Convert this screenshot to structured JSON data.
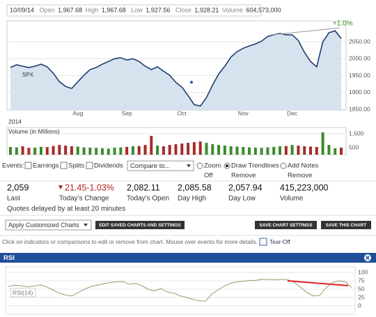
{
  "header": {
    "date": "10/09/14",
    "fields": [
      {
        "label": "Open",
        "value": "1,967.68"
      },
      {
        "label": "High",
        "value": "1,967.68"
      },
      {
        "label": "Low",
        "value": "1,927.56"
      },
      {
        "label": "Close",
        "value": "1,928.21"
      },
      {
        "label": "Volume",
        "value": "604,573,000"
      }
    ]
  },
  "chart_data": [
    {
      "type": "line",
      "name": "SPX",
      "year": "2014",
      "annotation": "+1.0%",
      "categories": [
        null,
        null,
        null,
        null,
        null,
        null,
        null,
        null,
        null,
        null,
        null,
        "Aug",
        null,
        null,
        null,
        null,
        null,
        null,
        null,
        "Sep",
        null,
        null,
        null,
        null,
        null,
        null,
        null,
        null,
        "Oct",
        null,
        null,
        null,
        null,
        null,
        null,
        null,
        null,
        null,
        "Nov",
        null,
        null,
        null,
        null,
        null,
        null,
        null,
        "Dec",
        null,
        null,
        null,
        null,
        null,
        null,
        null,
        null
      ],
      "values": [
        1974,
        1982,
        1978,
        1974,
        1978,
        1984,
        1976,
        1957,
        1932,
        1918,
        1912,
        1932,
        1951,
        1968,
        1974,
        1984,
        1992,
        2000,
        2003,
        1996,
        2000,
        1992,
        1978,
        1968,
        1976,
        1963,
        1951,
        1930,
        1916,
        1891,
        1864,
        1860,
        1885,
        1922,
        1955,
        1978,
        2005,
        2021,
        2031,
        2038,
        2044,
        2052,
        2066,
        2071,
        2075,
        2071,
        2071,
        2054,
        2019,
        1992,
        1976,
        2050,
        2077,
        2083,
        2060
      ],
      "color": "#1f3c6e",
      "fill": "#d6e2ee",
      "ylim": [
        1848,
        2112
      ],
      "yticks": [
        {
          "value": 1850,
          "label": "1850.00"
        },
        {
          "value": 1900,
          "label": "1900.00"
        },
        {
          "value": 1950,
          "label": "1950.00"
        },
        {
          "value": 2000,
          "label": "2000.00"
        },
        {
          "value": 2050,
          "label": "2050.00"
        }
      ],
      "grid": true
    },
    {
      "type": "bar",
      "title": "Volume (in Millions)",
      "values": [
        550,
        520,
        600,
        480,
        500,
        560,
        540,
        620,
        700,
        650,
        600,
        580,
        520,
        500,
        480,
        450,
        430,
        500,
        520,
        560,
        600,
        620,
        700,
        1350,
        650,
        600,
        700,
        750,
        800,
        850,
        900,
        950,
        850,
        750,
        700,
        650,
        600,
        580,
        550,
        520,
        500,
        480,
        520,
        560,
        600,
        620,
        700,
        650,
        600,
        580,
        550,
        1600,
        700,
        450,
        500
      ],
      "up_color": "#3a8a2a",
      "down_color": "#a52a2a",
      "ylim": [
        0,
        1950
      ],
      "yticks": [
        500,
        {
          "value": 1500,
          "label": "1,500"
        }
      ],
      "grid": true
    },
    {
      "type": "line",
      "title": "RSI",
      "name": "RSI(14)",
      "values": [
        58,
        62,
        60,
        57,
        59,
        63,
        57,
        48,
        38,
        33,
        30,
        40,
        50,
        58,
        62,
        66,
        70,
        72,
        73,
        65,
        68,
        60,
        50,
        45,
        52,
        42,
        38,
        30,
        26,
        20,
        15,
        14,
        35,
        48,
        60,
        68,
        72,
        74,
        76,
        77,
        80,
        79,
        78,
        80,
        78,
        70,
        55,
        40,
        30,
        32,
        55,
        70,
        75,
        72,
        55
      ],
      "color": "#9a9a6a",
      "ylim": [
        -25,
        117
      ],
      "yticks": [
        0,
        25,
        50,
        75,
        100
      ],
      "grid": true
    }
  ],
  "controls": {
    "events": "Events:",
    "checkboxes": [
      "Earnings",
      "Splits",
      "Dividends"
    ],
    "compare": "Compare to...",
    "radios": [
      {
        "label": "Zoom",
        "sub": "Off"
      },
      {
        "label": "Draw Trendlines",
        "sub": "Remove"
      },
      {
        "label": "Add Notes",
        "sub": "Remove"
      }
    ]
  },
  "stats": [
    {
      "value": "2,059",
      "label": "Last"
    },
    {
      "value": "21.45-1.03%",
      "label": "Today's Change"
    },
    {
      "value": "2,082.11",
      "label": "Today's Open"
    },
    {
      "value": "2,085.58",
      "label": "Day High"
    },
    {
      "value": "2,057.94",
      "label": "Day Low"
    },
    {
      "value": "415,223,000",
      "label": "Volume"
    }
  ],
  "delay_note": "Quotes delayed by at least 20 minutes",
  "toolbar": {
    "select": "Apply Customized Charts",
    "buttons": [
      "EDIT SAVED CHARTS AND SETTINGS",
      "SAVE CHART SETTINGS",
      "SAVE THIS CHART"
    ]
  },
  "info": {
    "text": "Click on indicators or comparisons to edit or remove from chart. Mouse over events for more details.",
    "link": "Tear-Off"
  }
}
